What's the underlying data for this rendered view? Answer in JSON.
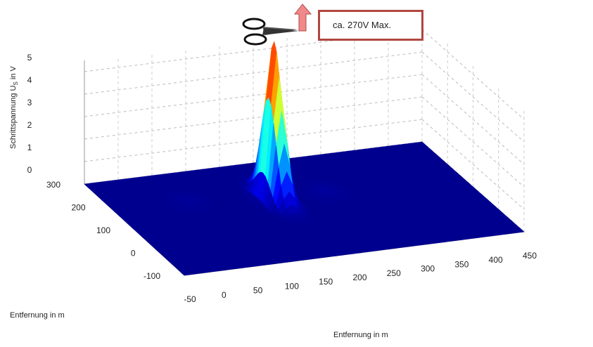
{
  "chart_data": {
    "type": "surface",
    "title": "",
    "zlabel": "Schrittspannung U",
    "zlabel_sub": "S",
    "zlabel_unit": "in V",
    "xlabel": "Entfernung in m",
    "ylabel": "Entfernung in m",
    "x_ticks": [
      "-50",
      "0",
      "50",
      "100",
      "150",
      "200",
      "250",
      "300",
      "350",
      "400",
      "450"
    ],
    "y_ticks": [
      "-100",
      "0",
      "100",
      "200",
      "300"
    ],
    "z_ticks": [
      "0",
      "1",
      "2",
      "3",
      "4",
      "5"
    ],
    "xlim": [
      -50,
      450
    ],
    "ylim": [
      -100,
      300
    ],
    "zlim": [
      0,
      5
    ],
    "peak": {
      "x": 175,
      "y": 150,
      "z": 270
    },
    "annotation": "ca. 270V Max.",
    "colormap": [
      "#00008f",
      "#0000ff",
      "#00ffff",
      "#ffff00",
      "#ff0000",
      "#800000"
    ]
  }
}
